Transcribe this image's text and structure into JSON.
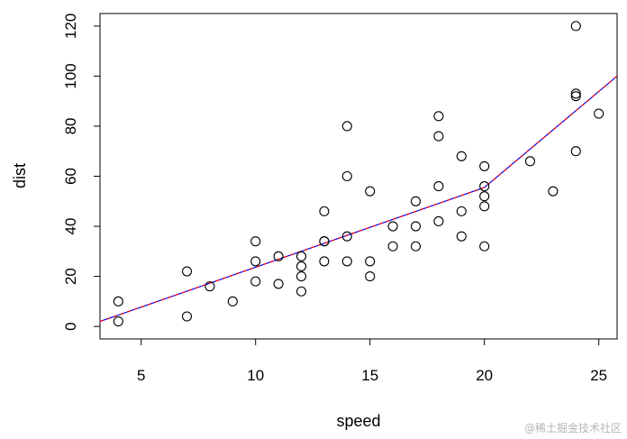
{
  "chart_data": {
    "type": "scatter",
    "title": "",
    "xlabel": "speed",
    "ylabel": "dist",
    "xlim": [
      3.2,
      25.8
    ],
    "ylim": [
      -5,
      125
    ],
    "xticks": [
      5,
      10,
      15,
      20,
      25
    ],
    "yticks": [
      0,
      20,
      40,
      60,
      80,
      100,
      120
    ],
    "grid": false,
    "points": [
      {
        "x": 4,
        "y": 2
      },
      {
        "x": 4,
        "y": 10
      },
      {
        "x": 7,
        "y": 4
      },
      {
        "x": 7,
        "y": 22
      },
      {
        "x": 8,
        "y": 16
      },
      {
        "x": 9,
        "y": 10
      },
      {
        "x": 10,
        "y": 18
      },
      {
        "x": 10,
        "y": 26
      },
      {
        "x": 10,
        "y": 34
      },
      {
        "x": 11,
        "y": 17
      },
      {
        "x": 11,
        "y": 28
      },
      {
        "x": 12,
        "y": 14
      },
      {
        "x": 12,
        "y": 20
      },
      {
        "x": 12,
        "y": 24
      },
      {
        "x": 12,
        "y": 28
      },
      {
        "x": 13,
        "y": 26
      },
      {
        "x": 13,
        "y": 34
      },
      {
        "x": 13,
        "y": 34
      },
      {
        "x": 13,
        "y": 46
      },
      {
        "x": 14,
        "y": 26
      },
      {
        "x": 14,
        "y": 36
      },
      {
        "x": 14,
        "y": 60
      },
      {
        "x": 14,
        "y": 80
      },
      {
        "x": 15,
        "y": 20
      },
      {
        "x": 15,
        "y": 26
      },
      {
        "x": 15,
        "y": 54
      },
      {
        "x": 16,
        "y": 32
      },
      {
        "x": 16,
        "y": 40
      },
      {
        "x": 17,
        "y": 32
      },
      {
        "x": 17,
        "y": 40
      },
      {
        "x": 17,
        "y": 50
      },
      {
        "x": 18,
        "y": 42
      },
      {
        "x": 18,
        "y": 56
      },
      {
        "x": 18,
        "y": 76
      },
      {
        "x": 18,
        "y": 84
      },
      {
        "x": 19,
        "y": 36
      },
      {
        "x": 19,
        "y": 46
      },
      {
        "x": 19,
        "y": 68
      },
      {
        "x": 20,
        "y": 32
      },
      {
        "x": 20,
        "y": 48
      },
      {
        "x": 20,
        "y": 52
      },
      {
        "x": 20,
        "y": 56
      },
      {
        "x": 20,
        "y": 64
      },
      {
        "x": 22,
        "y": 66
      },
      {
        "x": 23,
        "y": 54
      },
      {
        "x": 24,
        "y": 70
      },
      {
        "x": 24,
        "y": 92
      },
      {
        "x": 24,
        "y": 93
      },
      {
        "x": 24,
        "y": 120
      },
      {
        "x": 25,
        "y": 85
      }
    ],
    "fit_lines": [
      {
        "color": "#0000ff",
        "dash": false,
        "points": [
          [
            3.2,
            2
          ],
          [
            20,
            55.5
          ],
          [
            25.8,
            100
          ]
        ]
      },
      {
        "color": "#ff0000",
        "dash": true,
        "points": [
          [
            3.2,
            2
          ],
          [
            20,
            55.5
          ],
          [
            25.8,
            100
          ]
        ]
      }
    ]
  },
  "watermark": "@稀土掘金技术社区",
  "colors": {
    "point_stroke": "#000000",
    "axis": "#000000",
    "watermark": "#b5b5b5"
  }
}
